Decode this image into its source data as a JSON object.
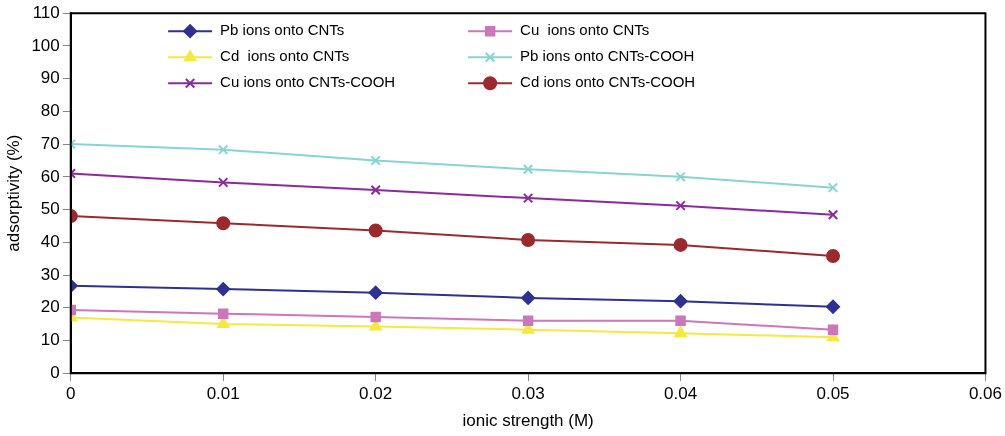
{
  "chart_data": {
    "type": "line",
    "xlabel": "ionic strength (M)",
    "ylabel": "adsorptivity (%)",
    "x": [
      0,
      0.01,
      0.02,
      0.03,
      0.04,
      0.05
    ],
    "xlim": [
      0,
      0.06
    ],
    "xticks": [
      0,
      0.01,
      0.02,
      0.03,
      0.04,
      0.05,
      0.06
    ],
    "ylim": [
      0,
      110
    ],
    "yticks": [
      0,
      10,
      20,
      30,
      40,
      50,
      60,
      70,
      80,
      90,
      100,
      110
    ],
    "grid": false,
    "legend": "top",
    "line_style": "solid",
    "series": [
      {
        "name": "Pb ions onto CNTs",
        "color": "#2e3192",
        "marker": "diamond",
        "values": [
          26.7,
          25.7,
          24.6,
          23,
          22,
          20.3
        ]
      },
      {
        "name": "Cu  ions onto CNTs",
        "color": "#cc77bb",
        "marker": "square",
        "values": [
          19.3,
          18.2,
          17.2,
          16,
          16,
          13.3
        ]
      },
      {
        "name": "Cd  ions onto CNTs",
        "color": "#f5e840",
        "marker": "triangle",
        "values": [
          17,
          15,
          14.3,
          13.3,
          12.2,
          11
        ]
      },
      {
        "name": "Pb ions onto CNTs-COOH",
        "color": "#88d3d3",
        "marker": "cross",
        "values": [
          70,
          68.3,
          65,
          62.3,
          60,
          56.7
        ]
      },
      {
        "name": "Cu ions onto CNTs-COOH",
        "color": "#8b2a9b",
        "marker": "cross",
        "values": [
          61,
          58.3,
          56,
          53.5,
          51.2,
          48.4
        ]
      },
      {
        "name": "Cd ions onto CNTs-COOH",
        "color": "#9b2a2e",
        "marker": "circle",
        "values": [
          48,
          45.8,
          43.6,
          40.7,
          39.2,
          35.8
        ]
      }
    ]
  }
}
